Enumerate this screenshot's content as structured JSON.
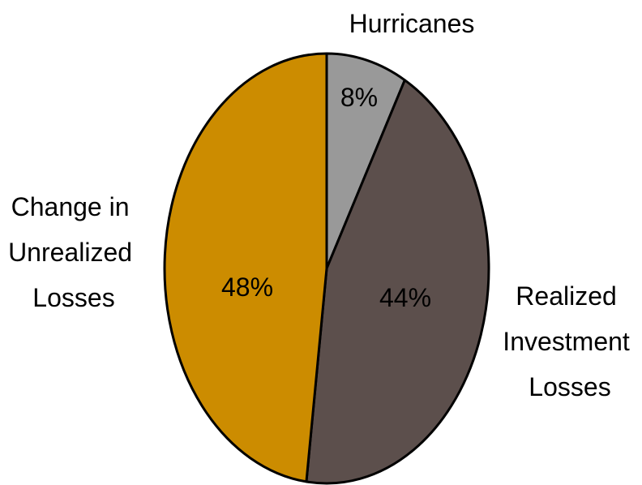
{
  "chart_data": {
    "type": "pie",
    "slices": [
      {
        "name": "Hurricanes",
        "label_lines": [
          "Hurricanes"
        ],
        "value": 8,
        "value_label": "8%",
        "color": "#999999"
      },
      {
        "name": "Realized Investment Losses",
        "label_lines": [
          "Realized",
          "Investment",
          "Losses"
        ],
        "value": 44,
        "value_label": "44%",
        "color": "#5c4f4c"
      },
      {
        "name": "Change in Unrealized Losses",
        "label_lines": [
          "Change in",
          "Unrealized",
          "Losses"
        ],
        "value": 48,
        "value_label": "48%",
        "color": "#cc8c00"
      }
    ],
    "outline_color": "#000000",
    "legend": "none"
  }
}
